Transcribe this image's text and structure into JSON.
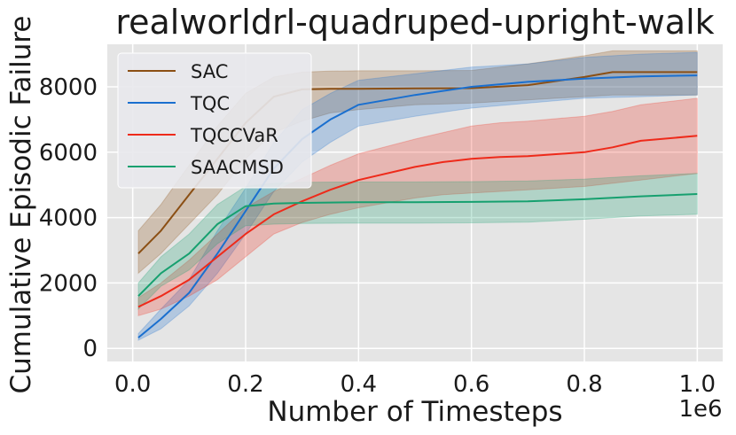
{
  "chart_data": {
    "type": "line",
    "title": "realworldrl-quadruped-upright-walk",
    "xlabel": "Number of Timesteps",
    "ylabel": "Cumulative Episodic Failure",
    "x_offset_label": "1e6",
    "xlim": [
      -0.045,
      1.045
    ],
    "ylim": [
      -400,
      9300
    ],
    "xticks": [
      0.0,
      0.2,
      0.4,
      0.6,
      0.8,
      1.0
    ],
    "xtick_labels": [
      "0.0",
      "0.2",
      "0.4",
      "0.6",
      "0.8",
      "1.0"
    ],
    "yticks": [
      0,
      2000,
      4000,
      6000,
      8000
    ],
    "ytick_labels": [
      "0",
      "2000",
      "4000",
      "6000",
      "8000"
    ],
    "grid": true,
    "legend_position": "top-left",
    "colors": {
      "background": "#e5e5e5",
      "grid": "#ffffff"
    },
    "series": [
      {
        "name": "SAC",
        "color": "#8b4f14",
        "x": [
          0.01,
          0.05,
          0.1,
          0.15,
          0.2,
          0.25,
          0.3,
          0.35,
          0.4,
          0.5,
          0.6,
          0.7,
          0.8,
          0.85,
          0.9,
          1.0
        ],
        "mean": [
          2900,
          3600,
          4700,
          5800,
          6900,
          7700,
          7920,
          7940,
          7940,
          7950,
          7960,
          8050,
          8300,
          8450,
          8450,
          8450
        ],
        "lower": [
          2300,
          2900,
          3800,
          4700,
          5800,
          6600,
          6950,
          7200,
          7300,
          7450,
          7500,
          7600,
          7700,
          7750,
          7750,
          7750
        ],
        "upper": [
          3600,
          4400,
          5600,
          6800,
          7800,
          8300,
          8450,
          8480,
          8490,
          8490,
          8500,
          8700,
          8950,
          9100,
          9100,
          9100
        ]
      },
      {
        "name": "TQC",
        "color": "#1a6fcf",
        "x": [
          0.01,
          0.05,
          0.1,
          0.15,
          0.2,
          0.25,
          0.3,
          0.35,
          0.4,
          0.5,
          0.6,
          0.7,
          0.8,
          0.9,
          1.0
        ],
        "mean": [
          330,
          900,
          1700,
          2900,
          4200,
          5500,
          6400,
          7000,
          7450,
          7750,
          8000,
          8150,
          8250,
          8320,
          8350
        ],
        "lower": [
          250,
          600,
          1300,
          2300,
          3500,
          4800,
          5700,
          6300,
          6800,
          7100,
          7350,
          7500,
          7650,
          7700,
          7750
        ],
        "upper": [
          450,
          1200,
          2100,
          3600,
          4900,
          6300,
          7300,
          7800,
          8200,
          8400,
          8600,
          8700,
          8900,
          9000,
          9050
        ]
      },
      {
        "name": "TQCCVaR",
        "color": "#ee2a1a",
        "x": [
          0.01,
          0.05,
          0.1,
          0.15,
          0.2,
          0.25,
          0.3,
          0.35,
          0.4,
          0.5,
          0.55,
          0.6,
          0.65,
          0.7,
          0.8,
          0.85,
          0.9,
          1.0
        ],
        "mean": [
          1270,
          1600,
          2100,
          2800,
          3500,
          4100,
          4500,
          4850,
          5150,
          5550,
          5700,
          5800,
          5850,
          5880,
          6000,
          6150,
          6350,
          6500
        ],
        "lower": [
          1000,
          1200,
          1600,
          2100,
          2800,
          3500,
          3850,
          4100,
          4300,
          4600,
          4700,
          4750,
          4800,
          4850,
          4950,
          5050,
          5150,
          5350
        ],
        "upper": [
          1550,
          2000,
          2700,
          3500,
          4300,
          4800,
          5200,
          5600,
          5950,
          6400,
          6600,
          6800,
          6900,
          6950,
          7100,
          7250,
          7450,
          7650
        ]
      },
      {
        "name": "SAACMSD",
        "color": "#16a06f",
        "x": [
          0.01,
          0.05,
          0.1,
          0.15,
          0.2,
          0.25,
          0.3,
          0.4,
          0.5,
          0.6,
          0.7,
          0.8,
          0.9,
          1.0
        ],
        "mean": [
          1600,
          2300,
          2900,
          3800,
          4350,
          4430,
          4450,
          4470,
          4470,
          4480,
          4500,
          4560,
          4650,
          4720
        ],
        "lower": [
          1200,
          1900,
          2400,
          3200,
          3750,
          3800,
          3820,
          3830,
          3830,
          3840,
          3860,
          3950,
          4050,
          4100
        ],
        "upper": [
          2000,
          2800,
          3500,
          4400,
          4950,
          5050,
          5080,
          5090,
          5090,
          5100,
          5120,
          5180,
          5280,
          5350
        ]
      }
    ]
  }
}
